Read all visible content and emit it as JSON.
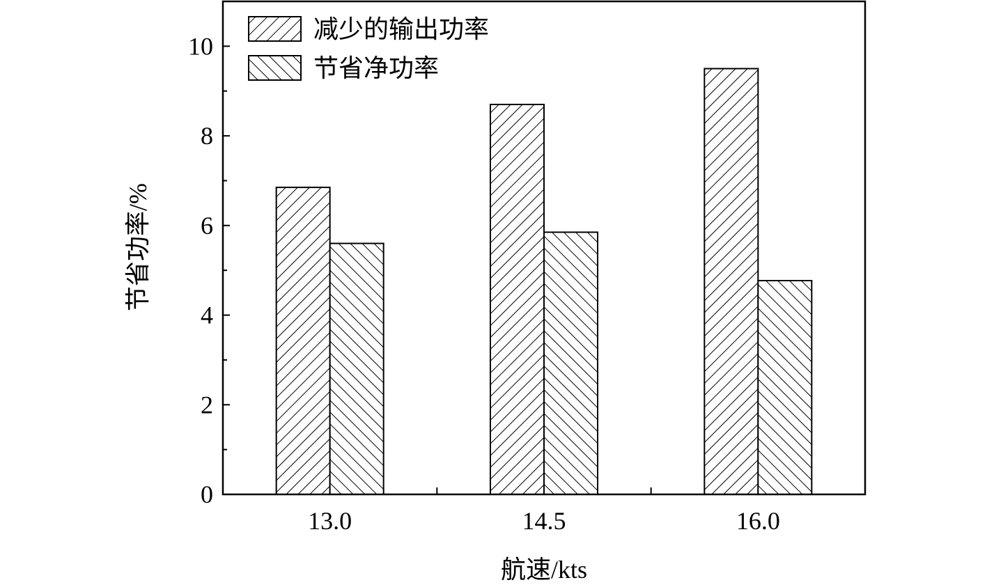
{
  "chart_data": {
    "type": "bar",
    "title": "",
    "xlabel": "航速/kts",
    "ylabel": "节省功率/%",
    "categories": [
      "13.0",
      "14.5",
      "16.0"
    ],
    "ylim": [
      0,
      11
    ],
    "yticks": [
      0,
      2,
      4,
      6,
      8,
      10
    ],
    "grid": false,
    "legend_position": "top-left",
    "series": [
      {
        "name": "减少的输出功率",
        "pattern": "forward-hatch",
        "values": [
          6.85,
          8.7,
          9.5
        ]
      },
      {
        "name": "节省净功率",
        "pattern": "back-hatch",
        "values": [
          5.6,
          5.85,
          4.77
        ]
      }
    ],
    "colors": {
      "stroke": "#000000",
      "fill": "#ffffff"
    }
  }
}
